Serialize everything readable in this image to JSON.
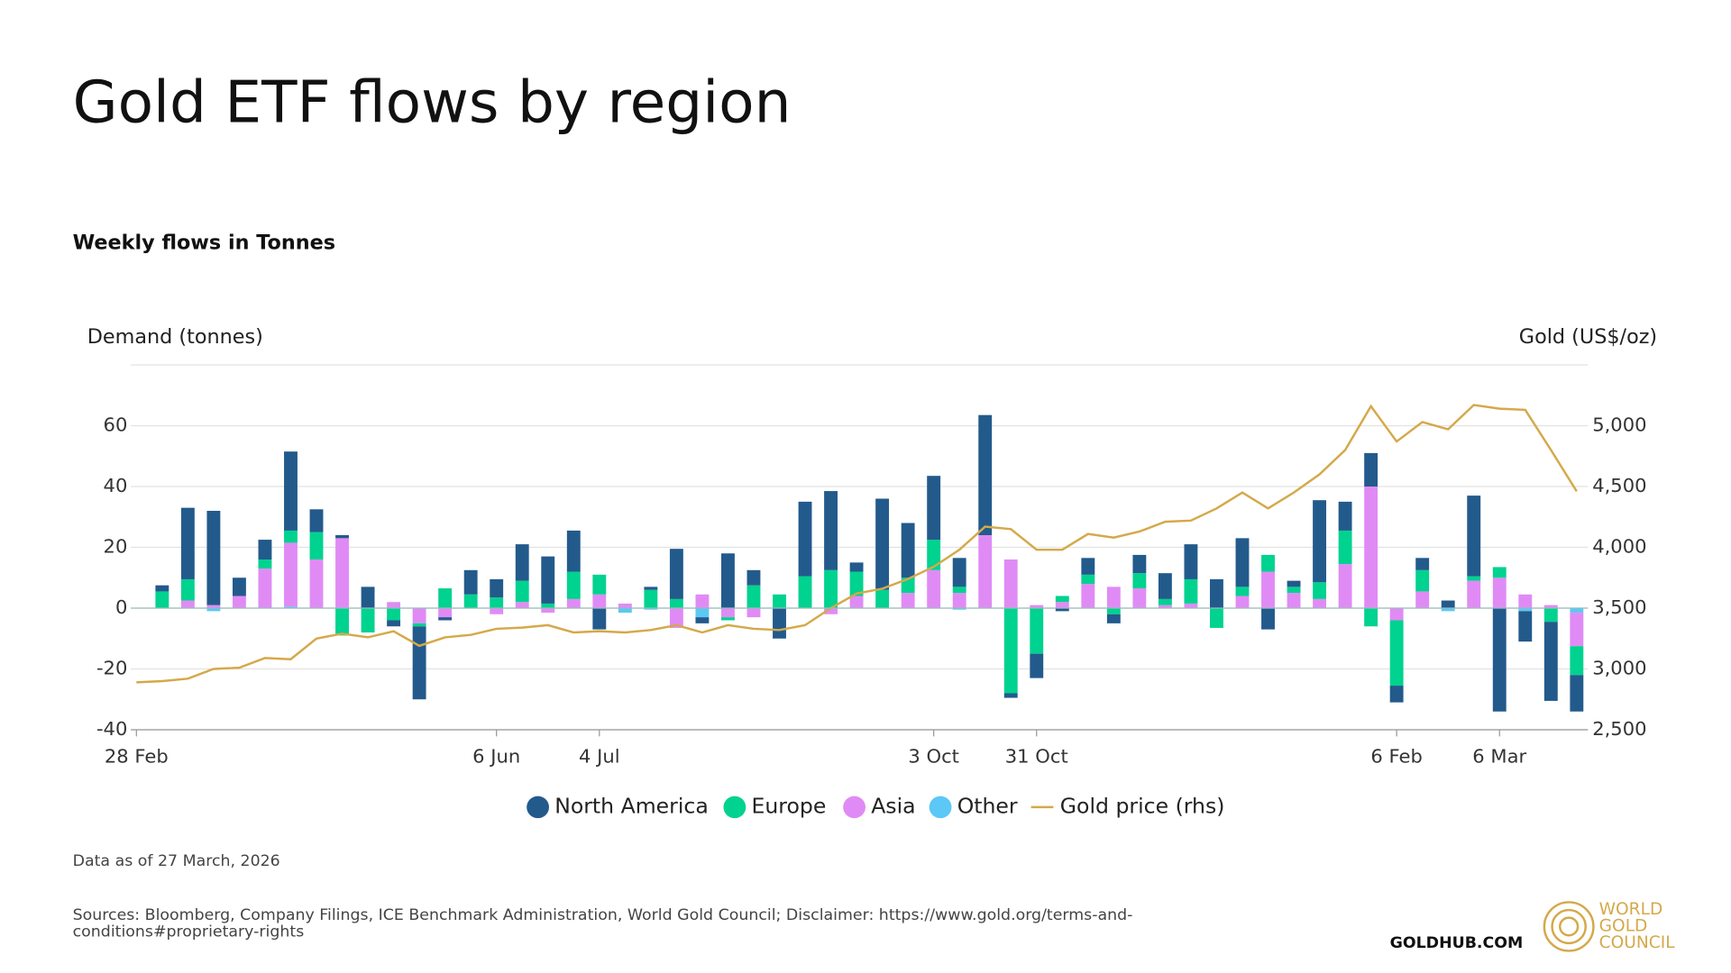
{
  "chart_data": {
    "type": "bar",
    "title": "Gold ETF flows by region",
    "subtitle": "Weekly flows in Tonnes",
    "y_label": "Demand (tonnes)",
    "y2_label": "Gold (US$/oz)",
    "categories": [
      "28 Feb",
      null,
      null,
      null,
      null,
      null,
      null,
      null,
      null,
      null,
      null,
      null,
      null,
      null,
      "6 Jun",
      null,
      null,
      null,
      "4 Jul",
      null,
      null,
      null,
      null,
      null,
      null,
      null,
      null,
      null,
      null,
      null,
      null,
      "3 Oct",
      null,
      null,
      null,
      "31 Oct",
      null,
      null,
      null,
      null,
      null,
      null,
      null,
      null,
      null,
      null,
      null,
      null,
      null,
      "6 Feb",
      null,
      null,
      null,
      "6 Mar",
      null,
      null,
      null
    ],
    "series": [
      {
        "name": "North America",
        "color": "#235a8c",
        "type": "bar",
        "values": [
          null,
          2,
          23.5,
          31,
          6,
          6.5,
          26,
          7.5,
          1,
          7,
          -2,
          -24,
          -1,
          8,
          6,
          12,
          15.5,
          13.5,
          -7,
          0,
          1,
          16.5,
          -2,
          18,
          5,
          -10,
          24.5,
          26,
          3,
          30,
          18,
          21,
          9.5,
          39.5,
          -1.5,
          -8,
          -1,
          5.5,
          -3,
          6,
          8.5,
          11.5,
          9.5,
          16,
          -7,
          2,
          27,
          9.5,
          11,
          -5.5,
          4,
          2.5,
          26.5,
          -34,
          -10,
          -26,
          -12
        ]
      },
      {
        "name": "Europe",
        "color": "#00d28f",
        "type": "bar",
        "values": [
          null,
          5.5,
          7,
          0,
          0,
          3,
          4,
          9,
          -9,
          -8,
          -4,
          -1,
          6.5,
          4.5,
          3.5,
          7,
          1.5,
          9,
          6.5,
          0,
          6,
          3,
          0,
          -1,
          7.5,
          4.5,
          10.5,
          12.5,
          8,
          6,
          5,
          10,
          2,
          0,
          -28,
          -15,
          2,
          3,
          -2,
          5,
          2,
          8,
          -6.5,
          3,
          5.5,
          2,
          5.5,
          11,
          -6,
          -21.5,
          7,
          0,
          1.5,
          3.5,
          0,
          -4.5,
          -9.5
        ]
      },
      {
        "name": "Asia",
        "color": "#e08bf5",
        "type": "bar",
        "values": [
          null,
          0,
          2.5,
          1,
          4,
          13,
          21,
          16,
          23,
          0,
          2,
          -5,
          -3,
          0,
          -2,
          2,
          -1.5,
          3,
          4.5,
          1.5,
          0,
          -6.5,
          4.5,
          -3,
          -3,
          0,
          0,
          -2,
          4,
          0,
          5,
          12.5,
          5,
          24,
          16,
          1,
          2,
          8,
          7,
          6.5,
          1,
          1.5,
          0,
          4,
          12,
          5,
          3,
          14.5,
          40,
          -4,
          5.5,
          0,
          9,
          10,
          4.5,
          1,
          -11
        ]
      },
      {
        "name": "Other",
        "color": "#5bc8f5",
        "type": "bar",
        "values": [
          null,
          0,
          0,
          -1,
          0,
          0,
          0.5,
          0,
          0,
          0,
          0,
          0,
          0,
          0,
          0,
          0,
          0,
          0,
          0,
          -1.5,
          -0.5,
          0,
          -3,
          0,
          0,
          0,
          0,
          0,
          0,
          0,
          0,
          0,
          -0.5,
          0,
          0,
          0,
          0,
          0,
          0,
          0,
          0,
          0,
          0,
          0,
          0,
          0,
          0,
          0,
          0,
          0,
          0,
          -1,
          0,
          0,
          -1,
          0,
          -1.5
        ]
      },
      {
        "name": "Gold price (rhs)",
        "color": "#d4a94a",
        "type": "line",
        "axis": "y2",
        "values": [
          2890,
          2900,
          2920,
          3000,
          3010,
          3090,
          3080,
          3250,
          3290,
          3260,
          3310,
          3190,
          3260,
          3280,
          3330,
          3340,
          3360,
          3300,
          3310,
          3300,
          3320,
          3360,
          3300,
          3360,
          3330,
          3320,
          3360,
          3500,
          3620,
          3660,
          3740,
          3840,
          3980,
          4170,
          4150,
          3980,
          3980,
          4110,
          4080,
          4130,
          4210,
          4220,
          4320,
          4450,
          4320,
          4450,
          4600,
          4800,
          5160,
          4870,
          5030,
          4970,
          5170,
          5140,
          5130,
          4800,
          4460
        ]
      }
    ],
    "ylim": [
      -40,
      80
    ],
    "yticks": [
      -40,
      -20,
      0,
      20,
      40,
      60
    ],
    "y2lim": [
      2500,
      5500
    ],
    "y2ticks": [
      {
        "value": 2500,
        "label": "2,500"
      },
      {
        "value": 3000,
        "label": "3,000"
      },
      {
        "value": 3500,
        "label": "3,500"
      },
      {
        "value": 4000,
        "label": "4,000"
      },
      {
        "value": 4500,
        "label": "4,500"
      },
      {
        "value": 5000,
        "label": "5,000"
      }
    ],
    "grid": true,
    "legend": "bottom",
    "note": "Data as of 27 March, 2026",
    "source": "Sources: Bloomberg, Company Filings, ICE Benchmark Administration, World Gold Council; Disclaimer: https://www.gold.org/terms-and-conditions#proprietary-rights"
  },
  "footer": {
    "site": "GOLDHUB.COM",
    "logo": [
      "WORLD",
      "GOLD",
      "COUNCIL"
    ]
  }
}
